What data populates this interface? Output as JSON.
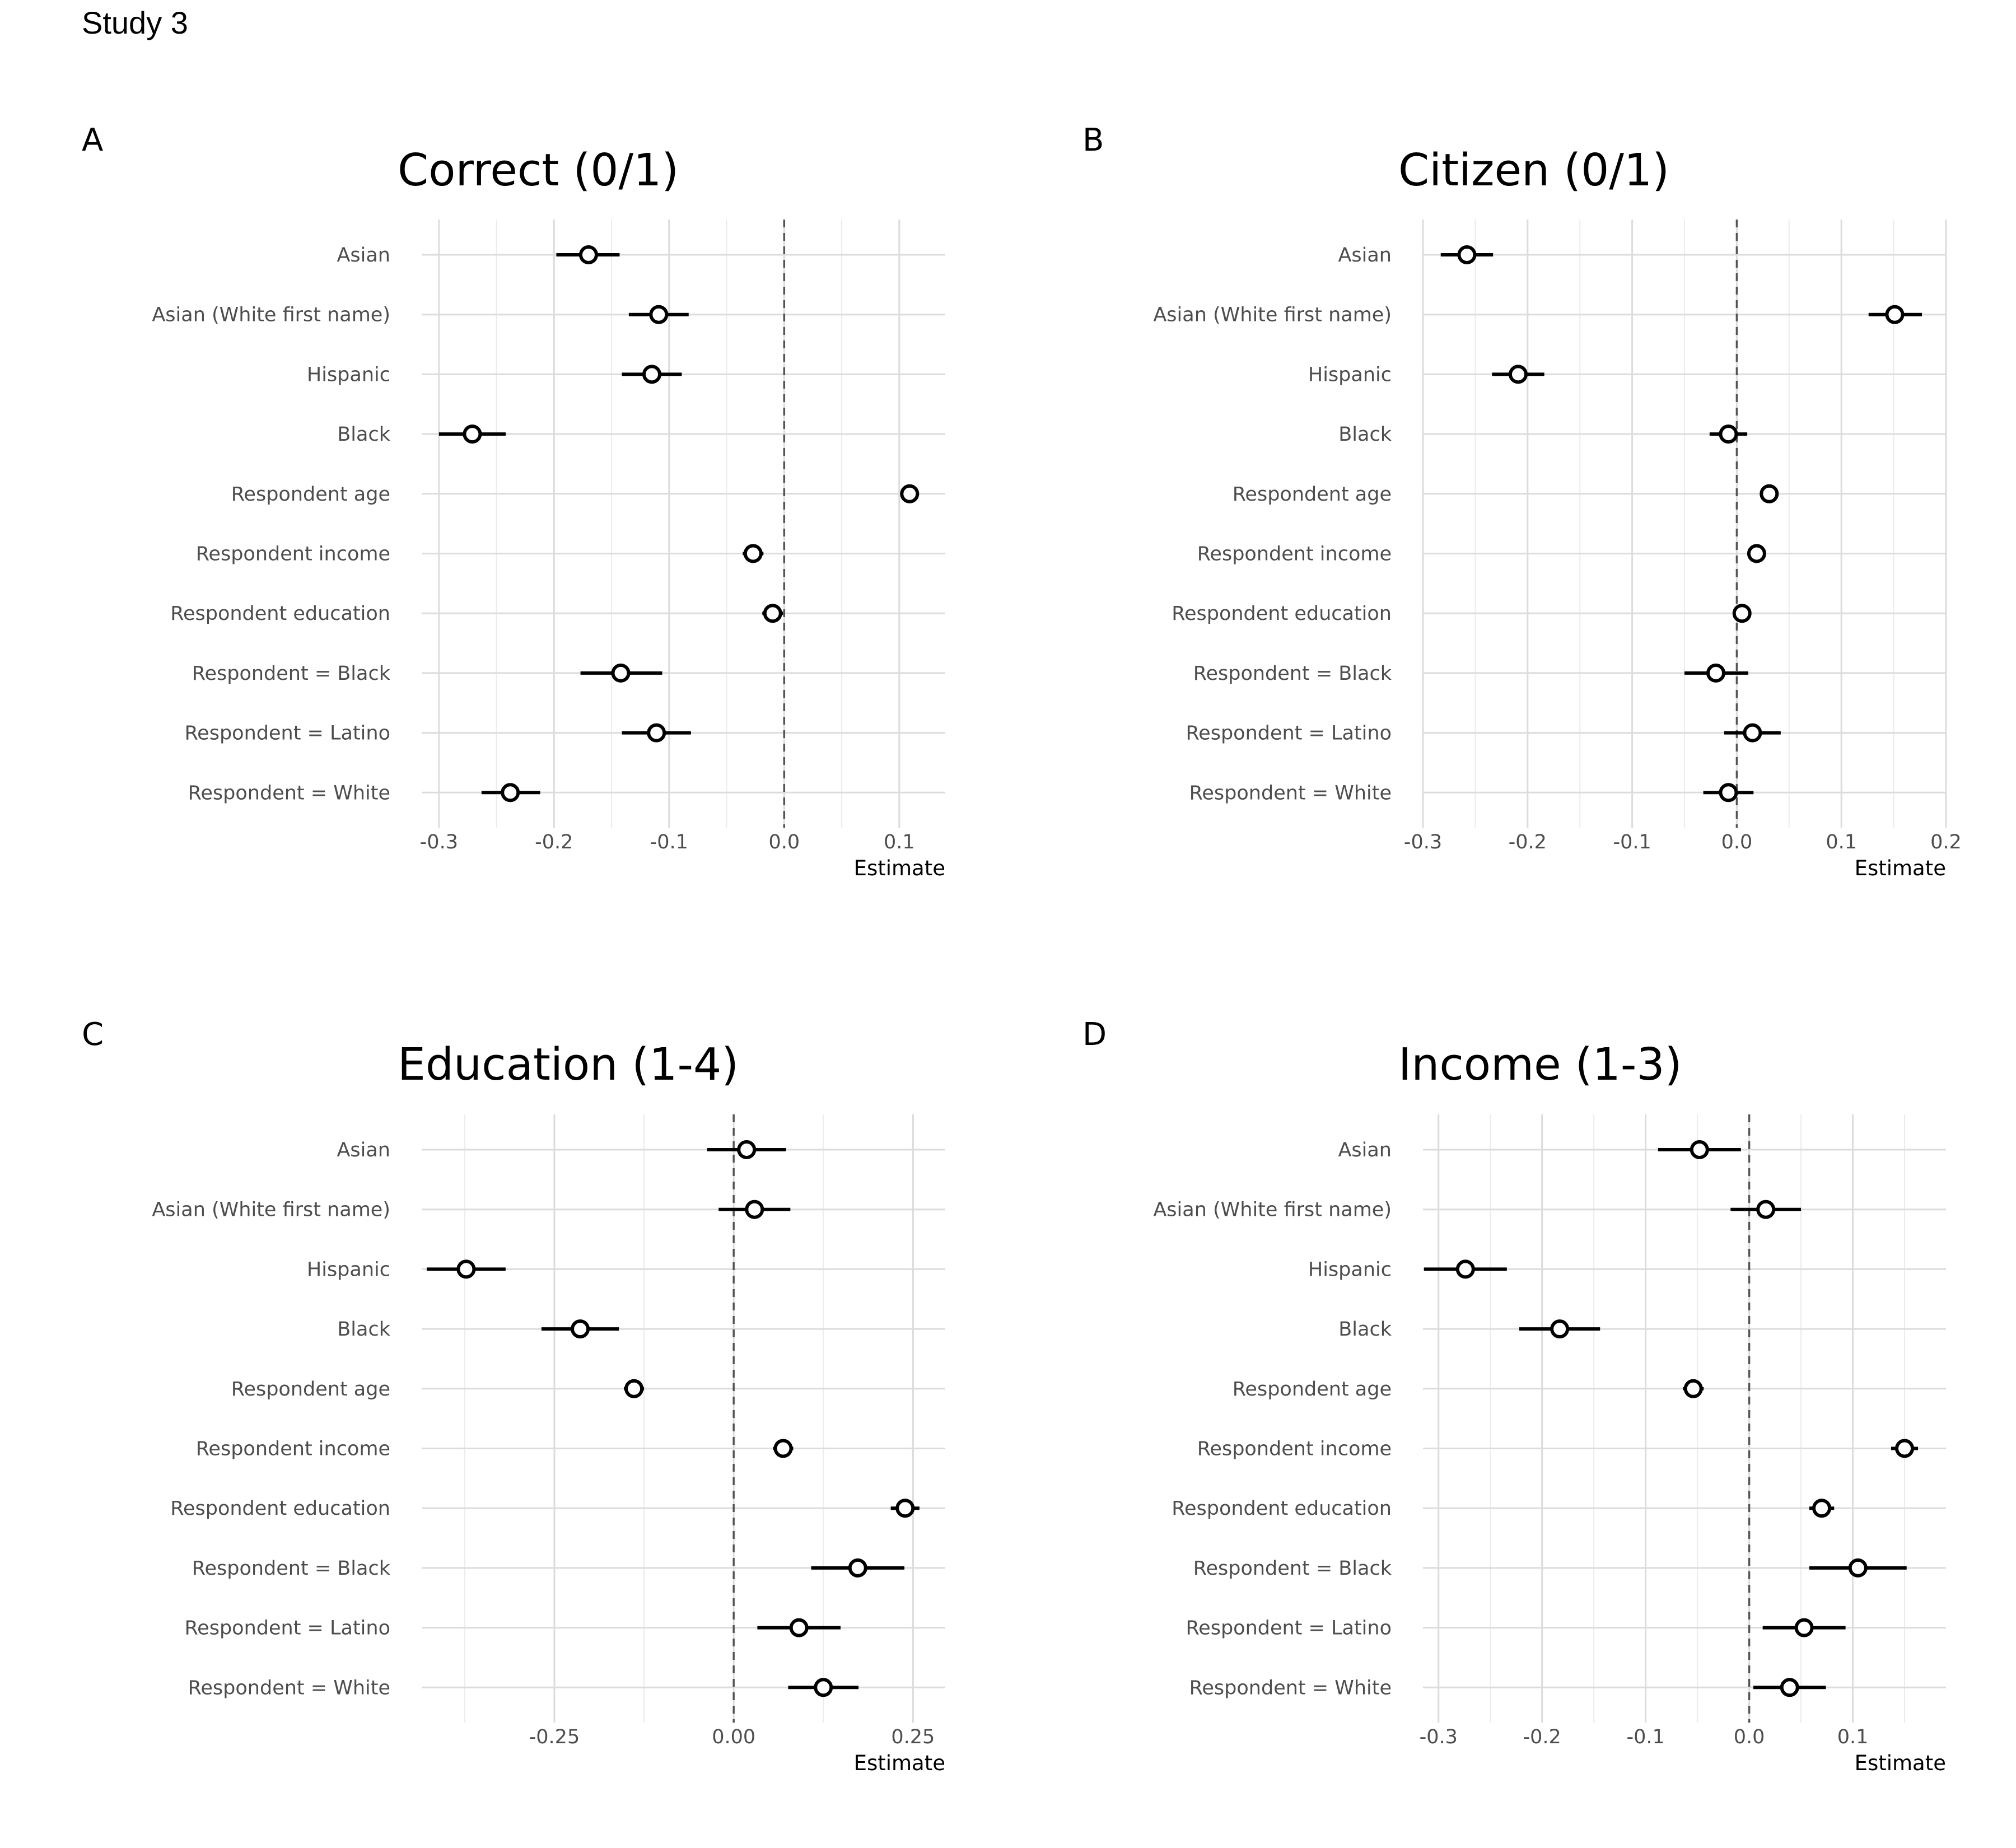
{
  "study_title": "Study 3",
  "chart_data": [
    {
      "type": "scatter",
      "panel": "A",
      "title": "Correct (0/1)",
      "xlabel": "Estimate",
      "ylabel": "",
      "categories": [
        "Asian",
        "Asian (White first name)",
        "Hispanic",
        "Black",
        "Respondent age",
        "Respondent income",
        "Respondent education",
        "Respondent = Black",
        "Respondent = Latino",
        "Respondent = White"
      ],
      "estimates": [
        -0.17,
        -0.109,
        -0.115,
        -0.271,
        0.109,
        -0.027,
        -0.01,
        -0.142,
        -0.111,
        -0.238
      ],
      "ci_low": [
        -0.198,
        -0.135,
        -0.141,
        -0.3,
        0.104,
        -0.036,
        -0.019,
        -0.177,
        -0.141,
        -0.263
      ],
      "ci_high": [
        -0.143,
        -0.083,
        -0.089,
        -0.242,
        0.114,
        -0.018,
        -0.001,
        -0.106,
        -0.081,
        -0.212
      ],
      "xlim": [
        -0.315,
        0.14
      ],
      "xticks": [
        -0.3,
        -0.2,
        -0.1,
        0.0,
        0.1
      ],
      "xtick_labels": [
        "-0.3",
        "-0.2",
        "-0.1",
        "0.0",
        "0.1"
      ],
      "reference_line": 0,
      "grid": true
    },
    {
      "type": "scatter",
      "panel": "B",
      "title": "Citizen (0/1)",
      "xlabel": "Estimate",
      "ylabel": "",
      "categories": [
        "Asian",
        "Asian (White first name)",
        "Hispanic",
        "Black",
        "Respondent age",
        "Respondent income",
        "Respondent education",
        "Respondent = Black",
        "Respondent = Latino",
        "Respondent = White"
      ],
      "estimates": [
        -0.258,
        0.151,
        -0.209,
        -0.008,
        0.031,
        0.019,
        0.005,
        -0.02,
        0.015,
        -0.008
      ],
      "ci_low": [
        -0.283,
        0.126,
        -0.234,
        -0.026,
        0.027,
        0.015,
        0.001,
        -0.05,
        -0.012,
        -0.032
      ],
      "ci_high": [
        -0.233,
        0.177,
        -0.184,
        0.01,
        0.035,
        0.023,
        0.009,
        0.011,
        0.042,
        0.016
      ],
      "xlim": [
        -0.3,
        0.2
      ],
      "xticks": [
        -0.3,
        -0.2,
        -0.1,
        0.0,
        0.1,
        0.2
      ],
      "xtick_labels": [
        "-0.3",
        "-0.2",
        "-0.1",
        "0.0",
        "0.1",
        "0.2"
      ],
      "reference_line": 0,
      "grid": true
    },
    {
      "type": "scatter",
      "panel": "C",
      "title": "Education (1-4)",
      "xlabel": "Estimate",
      "ylabel": "",
      "categories": [
        "Asian",
        "Asian (White first name)",
        "Hispanic",
        "Black",
        "Respondent age",
        "Respondent income",
        "Respondent education",
        "Respondent = Black",
        "Respondent = Latino",
        "Respondent = White"
      ],
      "estimates": [
        0.018,
        0.029,
        -0.373,
        -0.214,
        -0.139,
        0.069,
        0.239,
        0.173,
        0.091,
        0.125
      ],
      "ci_low": [
        -0.037,
        -0.021,
        -0.428,
        -0.268,
        -0.153,
        0.055,
        0.219,
        0.108,
        0.033,
        0.076
      ],
      "ci_high": [
        0.073,
        0.079,
        -0.318,
        -0.16,
        -0.125,
        0.083,
        0.259,
        0.238,
        0.149,
        0.174
      ],
      "xlim": [
        -0.435,
        0.295
      ],
      "xticks": [
        -0.25,
        0.0,
        0.25
      ],
      "xtick_labels": [
        "-0.25",
        "0.00",
        "0.25"
      ],
      "reference_line": 0,
      "grid": true
    },
    {
      "type": "scatter",
      "panel": "D",
      "title": "Income (1-3)",
      "xlabel": "Estimate",
      "ylabel": "",
      "categories": [
        "Asian",
        "Asian (White first name)",
        "Hispanic",
        "Black",
        "Respondent age",
        "Respondent income",
        "Respondent education",
        "Respondent = Black",
        "Respondent = Latino",
        "Respondent = White"
      ],
      "estimates": [
        -0.048,
        0.016,
        -0.274,
        -0.183,
        -0.054,
        0.15,
        0.07,
        0.105,
        0.053,
        0.039
      ],
      "ci_low": [
        -0.088,
        -0.018,
        -0.314,
        -0.222,
        -0.064,
        0.137,
        0.058,
        0.058,
        0.013,
        0.004
      ],
      "ci_high": [
        -0.008,
        0.05,
        -0.234,
        -0.144,
        -0.044,
        0.163,
        0.082,
        0.152,
        0.093,
        0.074
      ],
      "xlim": [
        -0.315,
        0.19
      ],
      "xticks": [
        -0.3,
        -0.2,
        -0.1,
        0.0,
        0.1
      ],
      "xtick_labels": [
        "-0.3",
        "-0.2",
        "-0.1",
        "0.0",
        "0.1"
      ],
      "reference_line": 0,
      "grid": true
    }
  ]
}
